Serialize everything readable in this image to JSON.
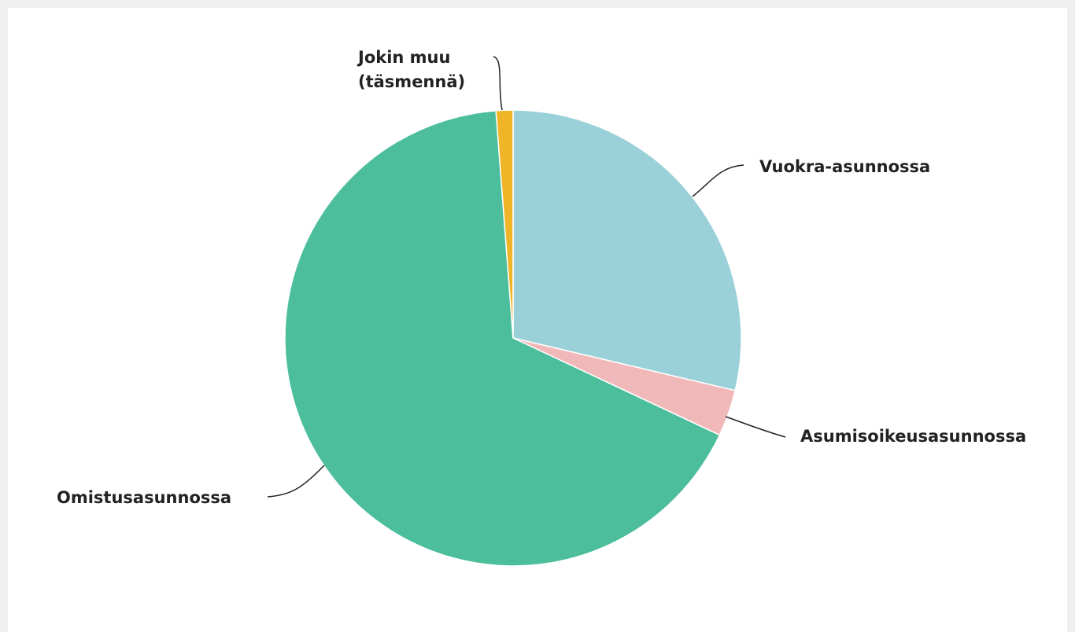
{
  "chart_data": {
    "type": "pie",
    "categories": [
      "Vuokra-asunnossa",
      "Asumisoikeusasunnossa",
      "Omistusasunnossa",
      "Jokin muu (täsmennä)"
    ],
    "values": [
      28.7,
      3.3,
      66.8,
      1.2
    ],
    "colors": [
      "#9ad0d8",
      "#f0b8b8",
      "#4cbe9c",
      "#f0b428"
    ]
  }
}
